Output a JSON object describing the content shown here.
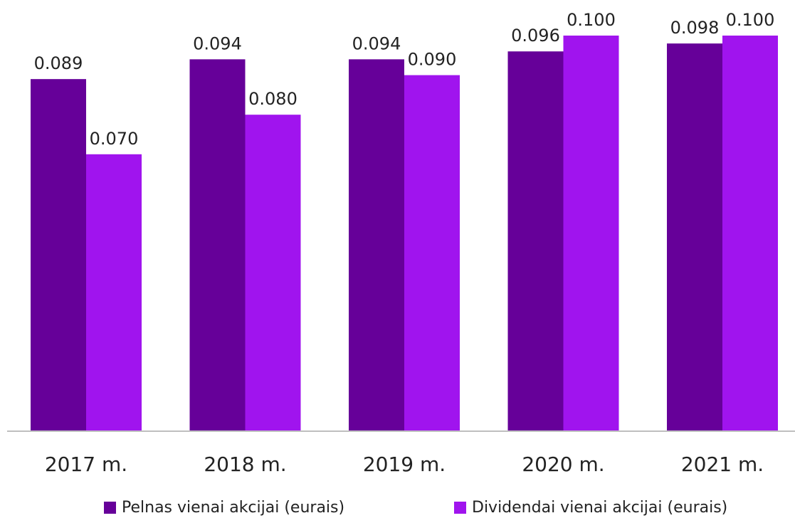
{
  "chart_data": {
    "type": "bar",
    "title": "",
    "xlabel": "",
    "ylabel": "",
    "ylim": [
      0,
      0.1
    ],
    "grid": false,
    "legend_position": "bottom",
    "categories": [
      "2017 m.",
      "2018 m.",
      "2019 m.",
      "2020 m.",
      "2021 m."
    ],
    "series": [
      {
        "name": "Pelnas vienai akcijai (eurais)",
        "color": "#660099",
        "values": [
          0.089,
          0.094,
          0.094,
          0.096,
          0.098
        ],
        "labels": [
          "0.089",
          "0.094",
          "0.094",
          "0.096",
          "0.098"
        ]
      },
      {
        "name": "Dividendai vienai akcijai (eurais)",
        "color": "#a014ee",
        "values": [
          0.07,
          0.08,
          0.09,
          0.1,
          0.1
        ],
        "labels": [
          "0.070",
          "0.080",
          "0.090",
          "0.100",
          "0.100"
        ]
      }
    ]
  }
}
